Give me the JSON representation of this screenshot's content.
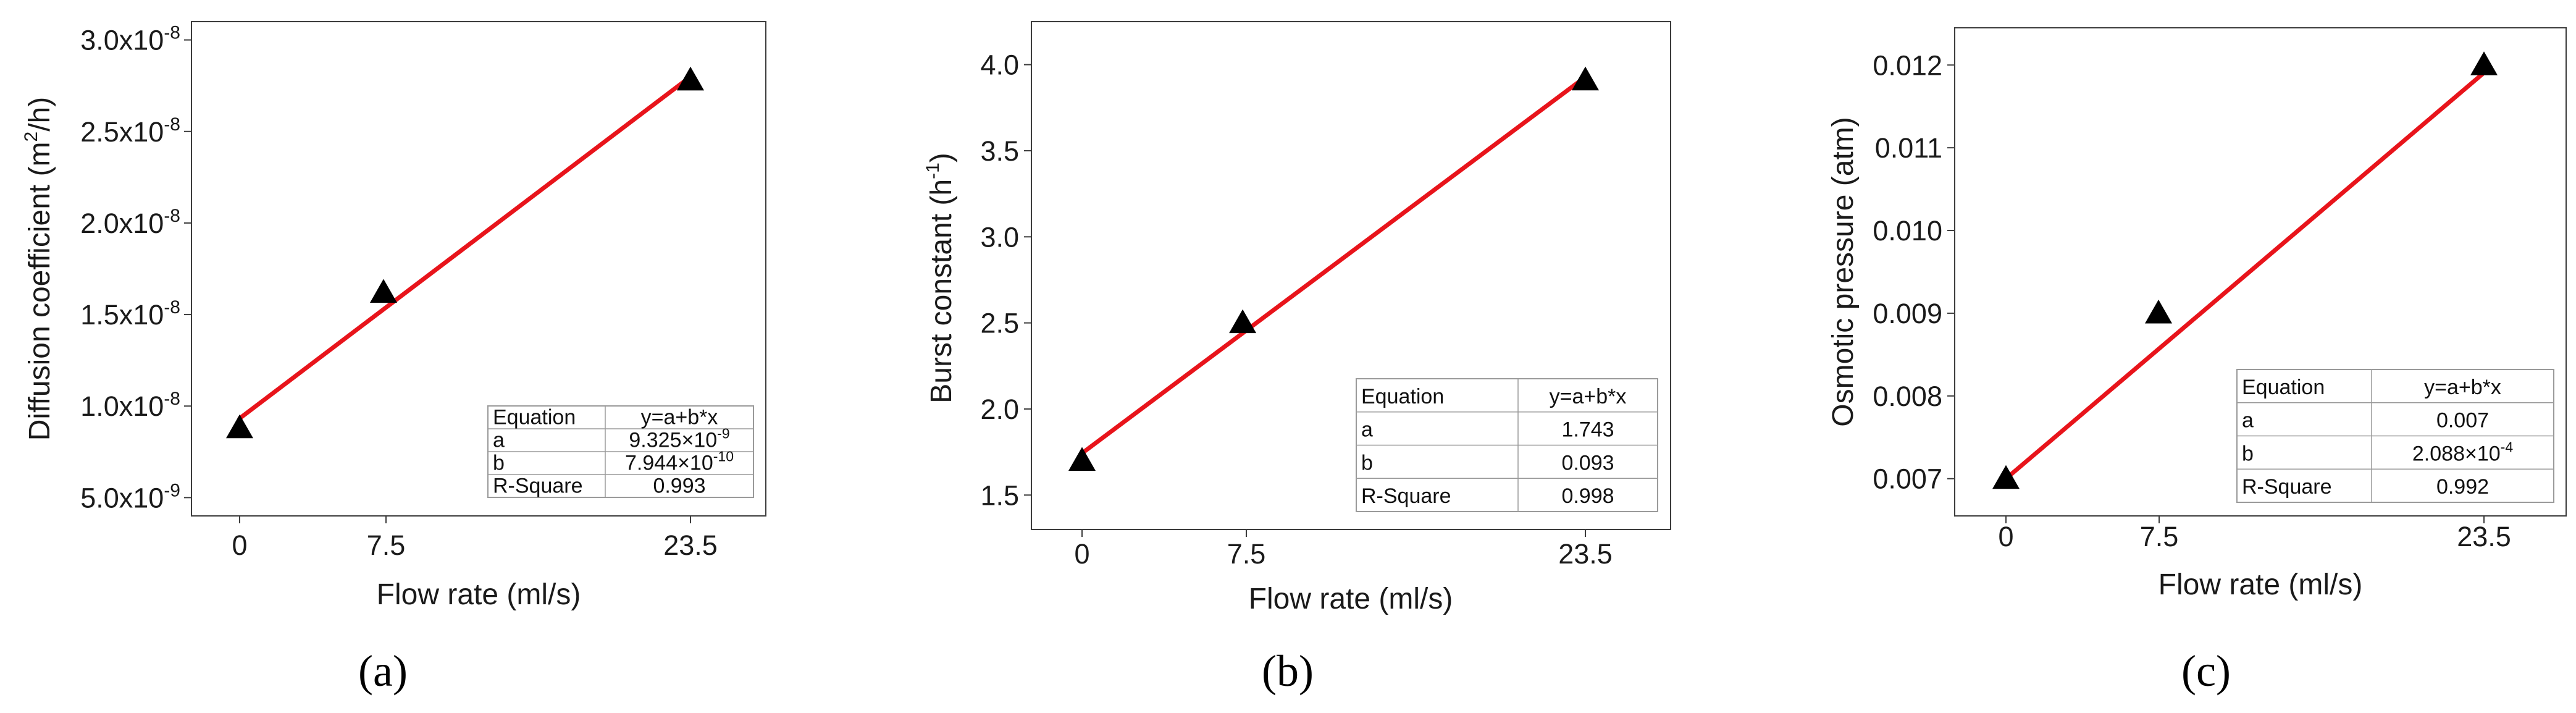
{
  "style": {
    "fit_color": "#e8141b",
    "marker_color": "#000000",
    "axis_color": "#3c3c3c",
    "table_line_color": "#9a9a9a"
  },
  "chart_data": [
    {
      "type": "scatter",
      "panel": "(a)",
      "xlabel": "Flow rate (ml/s)",
      "ylabel": {
        "pre": "Diffusion coefficient (m",
        "sup": "2",
        "post": "/h)"
      },
      "x_ticks": [
        "0",
        "7.5",
        "23.5"
      ],
      "xlim": [
        -3.5,
        27
      ],
      "ylim": [
        4e-09,
        3.1e-08
      ],
      "y_ticks": [
        {
          "value": 5e-09,
          "base": "5.0x10",
          "exp": "-9"
        },
        {
          "value": 1e-08,
          "base": "1.0x10",
          "exp": "-8"
        },
        {
          "value": 1.5e-08,
          "base": "1.5x10",
          "exp": "-8"
        },
        {
          "value": 2e-08,
          "base": "2.0x10",
          "exp": "-8"
        },
        {
          "value": 2.5e-08,
          "base": "2.5x10",
          "exp": "-8"
        },
        {
          "value": 3e-08,
          "base": "3.0x10",
          "exp": "-8"
        }
      ],
      "series": [
        {
          "marker": "triangle",
          "x": [
            0,
            7.5,
            23.5
          ],
          "y": [
            8.8e-09,
            1.62e-08,
            2.78e-08
          ]
        }
      ],
      "fit": {
        "a": 9.325e-09,
        "b": 7.944e-10,
        "x_range": [
          0,
          23.5
        ]
      },
      "table": {
        "rows": [
          {
            "label": "Equation",
            "value": "y=a+b*x"
          },
          {
            "label": "a",
            "value": "9.325×10",
            "sup": "-9"
          },
          {
            "label": "b",
            "value": "7.944×10",
            "sup": "-10"
          },
          {
            "label": "R-Square",
            "value": "0.993"
          }
        ]
      }
    },
    {
      "type": "scatter",
      "panel": "(b)",
      "xlabel": "Flow rate (ml/s)",
      "ylabel": {
        "pre": "Burst constant (h",
        "sup": "-1",
        "post": ")"
      },
      "x_ticks": [
        "0",
        "7.5",
        "23.5"
      ],
      "xlim": [
        -3.5,
        27
      ],
      "ylim": [
        1.3,
        4.25
      ],
      "y_ticks": [
        {
          "value": 1.5,
          "base": "1.5"
        },
        {
          "value": 2.0,
          "base": "2.0"
        },
        {
          "value": 2.5,
          "base": "2.5"
        },
        {
          "value": 3.0,
          "base": "3.0"
        },
        {
          "value": 3.5,
          "base": "3.5"
        },
        {
          "value": 4.0,
          "base": "4.0"
        }
      ],
      "series": [
        {
          "marker": "triangle",
          "x": [
            0,
            7.5,
            23.5
          ],
          "y": [
            1.7,
            2.5,
            3.91
          ]
        }
      ],
      "fit": {
        "a": 1.743,
        "b": 0.093,
        "x_range": [
          0,
          23.5
        ]
      },
      "table": {
        "rows": [
          {
            "label": "Equation",
            "value": "y=a+b*x"
          },
          {
            "label": "a",
            "value": "1.743"
          },
          {
            "label": "b",
            "value": "0.093"
          },
          {
            "label": "R-Square",
            "value": "0.998"
          }
        ]
      }
    },
    {
      "type": "scatter",
      "panel": "(c)",
      "xlabel": "Flow rate (ml/s)",
      "ylabel": {
        "pre": "Osmotic pressure (atm)",
        "sup": "",
        "post": ""
      },
      "x_ticks": [
        "0",
        "7.5",
        "23.5"
      ],
      "xlim": [
        -3.5,
        27
      ],
      "ylim": [
        0.00655,
        0.01245
      ],
      "y_ticks": [
        {
          "value": 0.007,
          "base": "0.007"
        },
        {
          "value": 0.008,
          "base": "0.008"
        },
        {
          "value": 0.009,
          "base": "0.009"
        },
        {
          "value": 0.01,
          "base": "0.010"
        },
        {
          "value": 0.011,
          "base": "0.011"
        },
        {
          "value": 0.012,
          "base": "0.012"
        }
      ],
      "series": [
        {
          "marker": "triangle",
          "x": [
            0,
            7.5,
            23.5
          ],
          "y": [
            0.007,
            0.009,
            0.012
          ]
        }
      ],
      "fit": {
        "a": 0.007,
        "b": 0.0002088,
        "x_range": [
          0,
          23.5
        ]
      },
      "table": {
        "rows": [
          {
            "label": "Equation",
            "value": "y=a+b*x"
          },
          {
            "label": "a",
            "value": "0.007"
          },
          {
            "label": "b",
            "value": "2.088×10",
            "sup": "-4"
          },
          {
            "label": "R-Square",
            "value": "0.992"
          }
        ]
      }
    }
  ]
}
